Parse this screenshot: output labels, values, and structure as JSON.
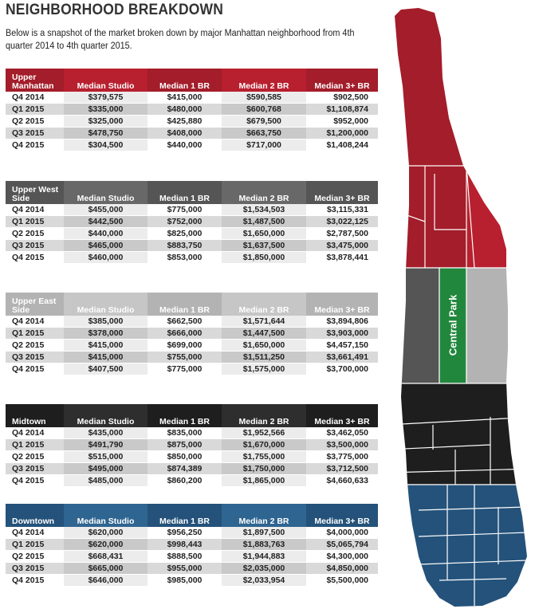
{
  "page": {
    "title": "NEIGHBORHOOD BREAKDOWN",
    "intro": "Below is a snapshot of the market broken down by major Manhattan neighborhood from 4th quarter 2014 to 4th quarter 2015."
  },
  "columns": [
    "Median Studio",
    "Median 1 BR",
    "Median 2 BR",
    "Median 3+ BR"
  ],
  "colors": {
    "upper_manhattan": [
      "#a31d2a",
      "#b8202f"
    ],
    "upper_west_side": [
      "#555555",
      "#686868"
    ],
    "upper_east_side": [
      "#b3b3b3",
      "#c6c6c6"
    ],
    "midtown": [
      "#1e1e1e",
      "#2e2e2e"
    ],
    "downtown": [
      "#24527a",
      "#2f6591"
    ],
    "central_park": "#21873d"
  },
  "tables": [
    {
      "name": "Upper Manhattan",
      "rows": [
        {
          "q": "Q4 2014",
          "v": [
            "$379,575",
            "$415,000",
            "$590,585",
            "$902,500"
          ]
        },
        {
          "q": "Q1 2015",
          "v": [
            "$335,000",
            "$480,000",
            "$600,768",
            "$1,108,874"
          ]
        },
        {
          "q": "Q2 2015",
          "v": [
            "$325,000",
            "$425,880",
            "$679,500",
            "$952,000"
          ]
        },
        {
          "q": "Q3 2015",
          "v": [
            "$478,750",
            "$408,000",
            "$663,750",
            "$1,200,000"
          ]
        },
        {
          "q": "Q4 2015",
          "v": [
            "$304,500",
            "$440,000",
            "$717,000",
            "$1,408,244"
          ]
        }
      ]
    },
    {
      "name": "Upper West Side",
      "rows": [
        {
          "q": "Q4 2014",
          "v": [
            "$455,000",
            "$775,000",
            "$1,534,503",
            "$3,115,331"
          ]
        },
        {
          "q": "Q1 2015",
          "v": [
            "$442,500",
            "$752,000",
            "$1,487,500",
            "$3,022,125"
          ]
        },
        {
          "q": "Q2 2015",
          "v": [
            "$440,000",
            "$825,000",
            "$1,650,000",
            "$2,787,500"
          ]
        },
        {
          "q": "Q3 2015",
          "v": [
            "$465,000",
            "$883,750",
            "$1,637,500",
            "$3,475,000"
          ]
        },
        {
          "q": "Q4 2015",
          "v": [
            "$460,000",
            "$853,000",
            "$1,850,000",
            "$3,878,441"
          ]
        }
      ]
    },
    {
      "name": "Upper East Side",
      "rows": [
        {
          "q": "Q4 2014",
          "v": [
            "$385,000",
            "$662,500",
            "$1,571,644",
            "$3,894,806"
          ]
        },
        {
          "q": "Q1 2015",
          "v": [
            "$378,000",
            "$666,000",
            "$1,447,500",
            "$3,903,000"
          ]
        },
        {
          "q": "Q2 2015",
          "v": [
            "$415,000",
            "$699,000",
            "$1,650,000",
            "$4,457,150"
          ]
        },
        {
          "q": "Q3 2015",
          "v": [
            "$415,000",
            "$755,000",
            "$1,511,250",
            "$3,661,491"
          ]
        },
        {
          "q": "Q4 2015",
          "v": [
            "$407,500",
            "$775,000",
            "$1,575,000",
            "$3,700,000"
          ]
        }
      ]
    },
    {
      "name": "Midtown",
      "rows": [
        {
          "q": "Q4 2014",
          "v": [
            "$435,000",
            "$835,000",
            "$1,952,566",
            "$3,462,050"
          ]
        },
        {
          "q": "Q1 2015",
          "v": [
            "$491,790",
            "$875,000",
            "$1,670,000",
            "$3,500,000"
          ]
        },
        {
          "q": "Q2 2015",
          "v": [
            "$515,000",
            "$850,000",
            "$1,755,000",
            "$3,775,000"
          ]
        },
        {
          "q": "Q3 2015",
          "v": [
            "$495,000",
            "$874,389",
            "$1,750,000",
            "$3,712,500"
          ]
        },
        {
          "q": "Q4 2015",
          "v": [
            "$485,000",
            "$860,200",
            "$1,865,000",
            "$4,660,633"
          ]
        }
      ]
    },
    {
      "name": "Downtown",
      "rows": [
        {
          "q": "Q4 2014",
          "v": [
            "$620,000",
            "$956,250",
            "$1,897,500",
            "$4,000,000"
          ]
        },
        {
          "q": "Q1 2015",
          "v": [
            "$620,000",
            "$998,443",
            "$1,883,763",
            "$5,065,794"
          ]
        },
        {
          "q": "Q2 2015",
          "v": [
            "$668,431",
            "$888,500",
            "$1,944,883",
            "$4,300,000"
          ]
        },
        {
          "q": "Q3 2015",
          "v": [
            "$665,000",
            "$955,000",
            "$2,035,000",
            "$4,850,000"
          ]
        },
        {
          "q": "Q4 2015",
          "v": [
            "$646,000",
            "$985,000",
            "$2,033,954",
            "$5,500,000"
          ]
        }
      ]
    }
  ],
  "map": {
    "label": "Central Park"
  }
}
